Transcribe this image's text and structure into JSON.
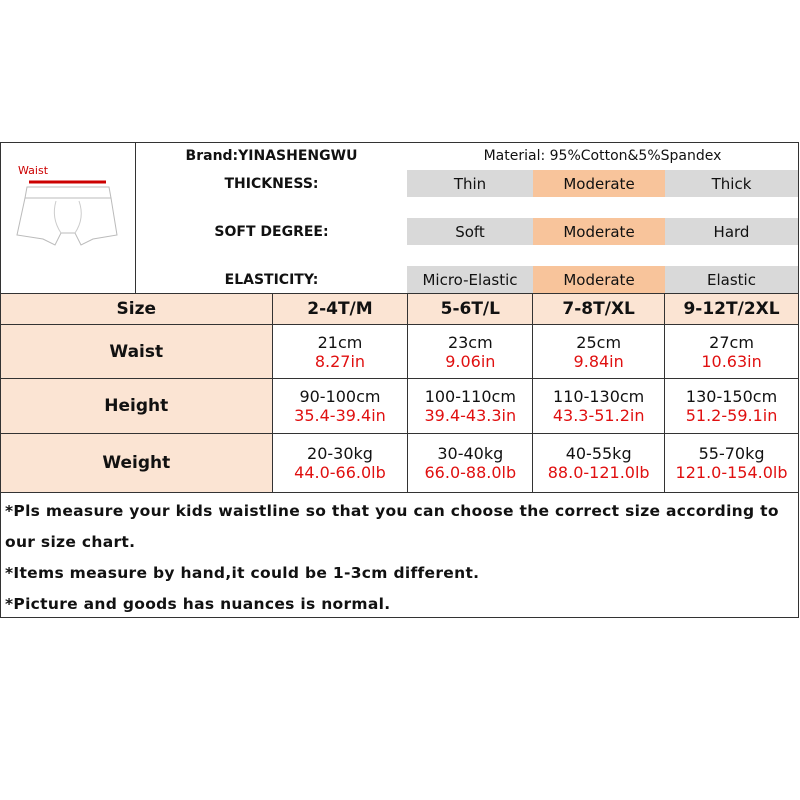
{
  "illustration": {
    "label": "Waist"
  },
  "brand": "Brand:YINASHENGWU",
  "material": "Material: 95%Cotton&5%Spandex",
  "attributes": [
    {
      "label": "THICKNESS:",
      "options": [
        "Thin",
        "Moderate",
        "Thick"
      ],
      "selected": "Moderate"
    },
    {
      "label": "SOFT DEGREE:",
      "options": [
        "Soft",
        "Moderate",
        "Hard"
      ],
      "selected": "Moderate"
    },
    {
      "label": "ELASTICITY:",
      "options": [
        "Micro-Elastic",
        "Moderate",
        "Elastic"
      ],
      "selected": "Moderate"
    }
  ],
  "colors": {
    "header_bg": "#fbe4d3",
    "selected": "#f8c49b",
    "unselected": "#d9d9d9",
    "imperial": "#e01010"
  },
  "size_table": {
    "header": [
      "Size",
      "2-4T/M",
      "5-6T/L",
      "7-8T/XL",
      "9-12T/2XL"
    ],
    "rows": [
      {
        "label": "Waist",
        "metric": [
          "21cm",
          "23cm",
          "25cm",
          "27cm"
        ],
        "imperial": [
          "8.27in",
          "9.06in",
          "9.84in",
          "10.63in"
        ]
      },
      {
        "label": "Height",
        "metric": [
          "90-100cm",
          "100-110cm",
          "110-130cm",
          "130-150cm"
        ],
        "imperial": [
          "35.4-39.4in",
          "39.4-43.3in",
          "43.3-51.2in",
          "51.2-59.1in"
        ]
      },
      {
        "label": "Weight",
        "metric": [
          "20-30kg",
          "30-40kg",
          "40-55kg",
          "55-70kg"
        ],
        "imperial": [
          "44.0-66.0lb",
          "66.0-88.0lb",
          "88.0-121.0lb",
          "121.0-154.0lb"
        ]
      }
    ]
  },
  "notes": [
    "*Pls measure your kids waistline so that you can choose the correct size according to our size chart.",
    "*Items measure by hand,it could be 1-3cm different.",
    "*Picture and goods has nuances is normal."
  ]
}
